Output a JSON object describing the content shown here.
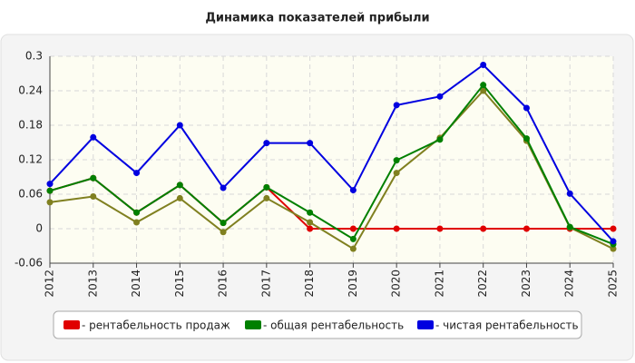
{
  "chart_data": {
    "type": "line",
    "title": "Динамика показателей прибыли",
    "x": [
      "2012",
      "2013",
      "2014",
      "2015",
      "2016",
      "2017",
      "2018",
      "2019",
      "2020",
      "2021",
      "2022",
      "2023",
      "2024",
      "2025"
    ],
    "ylim": [
      -0.06,
      0.3
    ],
    "yticks": [
      -0.06,
      0,
      0.06,
      0.12,
      0.18,
      0.24,
      0.3
    ],
    "grid": true,
    "legend": "bottom",
    "series": [
      {
        "name": "- рентабельность продаж",
        "color": "#e00000",
        "values": [
          0.066,
          0.088,
          0.028,
          0.076,
          0.01,
          0.072,
          0,
          0,
          0,
          0,
          0,
          0,
          0,
          0
        ]
      },
      {
        "name": "- общая рентабельность",
        "color": "#008000",
        "values": [
          0.066,
          0.088,
          0.028,
          0.076,
          0.01,
          0.072,
          0.028,
          -0.018,
          0.119,
          0.155,
          0.25,
          0.157,
          0.003,
          -0.027
        ]
      },
      {
        "name": "- чистая рентабельность",
        "color": "#0000e0",
        "values": [
          0.078,
          0.159,
          0.097,
          0.18,
          0.071,
          0.149,
          0.149,
          0.067,
          0.215,
          0.23,
          0.285,
          0.21,
          0.061,
          -0.022
        ]
      },
      {
        "color": "#808020",
        "values": [
          0.046,
          0.056,
          0.011,
          0.053,
          -0.006,
          0.053,
          0.011,
          -0.035,
          0.097,
          0.158,
          0.24,
          0.153,
          0.002,
          -0.035
        ]
      }
    ]
  }
}
